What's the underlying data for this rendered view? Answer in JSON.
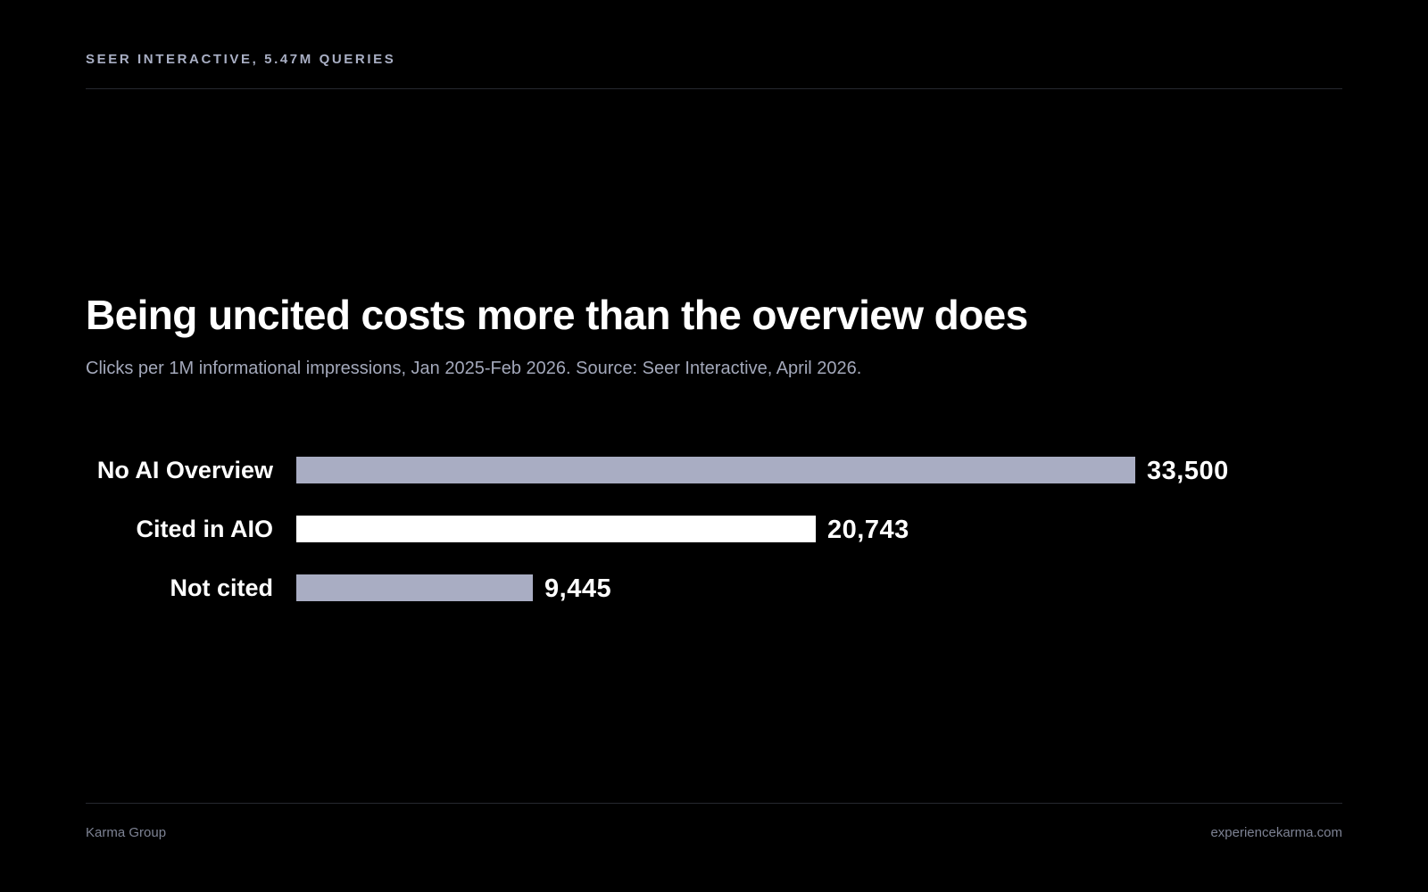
{
  "header": {
    "eyebrow": "SEER INTERACTIVE, 5.47M QUERIES"
  },
  "chart_data": {
    "type": "bar",
    "orientation": "horizontal",
    "title": "Being uncited costs more than the overview does",
    "subtitle": "Clicks per 1M informational impressions, Jan 2025-Feb 2026. Source: Seer Interactive, April 2026.",
    "categories": [
      "No AI Overview",
      "Cited in AIO",
      "Not cited"
    ],
    "values": [
      33500,
      20743,
      9445
    ],
    "value_labels": [
      "33,500",
      "20,743",
      "9,445"
    ],
    "bar_colors": [
      "#a9adc3",
      "#ffffff",
      "#a9adc3"
    ],
    "xlim": [
      0,
      33500
    ],
    "grid": false,
    "legend": "none"
  },
  "footer": {
    "left": "Karma Group",
    "right": "experiencekarma.com"
  },
  "colors": {
    "background": "#000000",
    "muted_bar": "#a9adc3",
    "highlight_bar": "#ffffff",
    "eyebrow": "#a9afc4",
    "subtitle": "#a3a8ba",
    "footer": "#7d8293"
  }
}
